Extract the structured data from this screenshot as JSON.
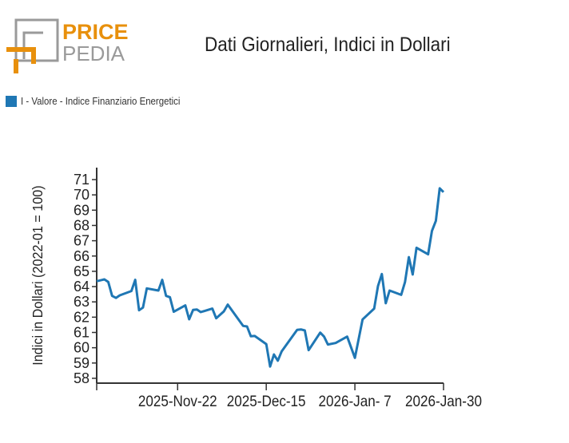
{
  "logo": {
    "line1": "PRICE",
    "line2": "PEDIA"
  },
  "colors": {
    "series": "#1f77b4",
    "logo_orange": "#e8900c",
    "logo_gray": "#9a9a9a"
  },
  "chart_data": {
    "type": "line",
    "title": "Dati Giornalieri, Indici in Dollari",
    "xlabel": "",
    "ylabel": "Indici in Dollari (2022-01 = 100)",
    "x_units": "days since 2025-11-01",
    "xlim": [
      0,
      90
    ],
    "ylim": [
      57.7,
      71.8
    ],
    "y_ticks": [
      58,
      59,
      60,
      61,
      62,
      63,
      64,
      65,
      66,
      67,
      68,
      69,
      70,
      71
    ],
    "x_ticks": [
      {
        "x": 21,
        "label": "2025-Nov-22"
      },
      {
        "x": 44,
        "label": "2025-Dec-15"
      },
      {
        "x": 67,
        "label": "2026-Jan- 7"
      },
      {
        "x": 90,
        "label": "2026-Jan-30"
      }
    ],
    "legend": {
      "placement": "top-left",
      "entries": [
        "I - Valore - Indice Finanziario Energetici"
      ]
    },
    "series": [
      {
        "name": "I - Valore - Indice Finanziario Energetici",
        "x": [
          0,
          2,
          3,
          4,
          5,
          6,
          9,
          10,
          11,
          12,
          13,
          16,
          17,
          18,
          19,
          20,
          23,
          24,
          25,
          26,
          27,
          30,
          31,
          33,
          34,
          38,
          39,
          40,
          41,
          44,
          45,
          46,
          47,
          48,
          52,
          53,
          54,
          55,
          58,
          59,
          60,
          62,
          65,
          67,
          69,
          72,
          73,
          74,
          75,
          76,
          79,
          80,
          81,
          82,
          83,
          86,
          87,
          88,
          89,
          90
        ],
        "values": [
          64.35,
          64.47,
          64.3,
          63.39,
          63.26,
          63.43,
          63.71,
          64.44,
          62.45,
          62.63,
          63.88,
          63.74,
          64.44,
          63.39,
          63.31,
          62.35,
          62.77,
          61.86,
          62.47,
          62.5,
          62.33,
          62.56,
          61.93,
          62.38,
          62.82,
          61.43,
          61.39,
          60.75,
          60.77,
          60.24,
          58.77,
          59.56,
          59.15,
          59.77,
          61.17,
          61.2,
          61.13,
          59.84,
          60.99,
          60.73,
          60.21,
          60.31,
          60.73,
          59.34,
          61.85,
          62.56,
          64.04,
          64.82,
          62.91,
          63.74,
          63.46,
          64.3,
          65.93,
          64.79,
          66.54,
          66.11,
          67.64,
          68.3,
          70.43,
          70.18
        ]
      }
    ]
  }
}
